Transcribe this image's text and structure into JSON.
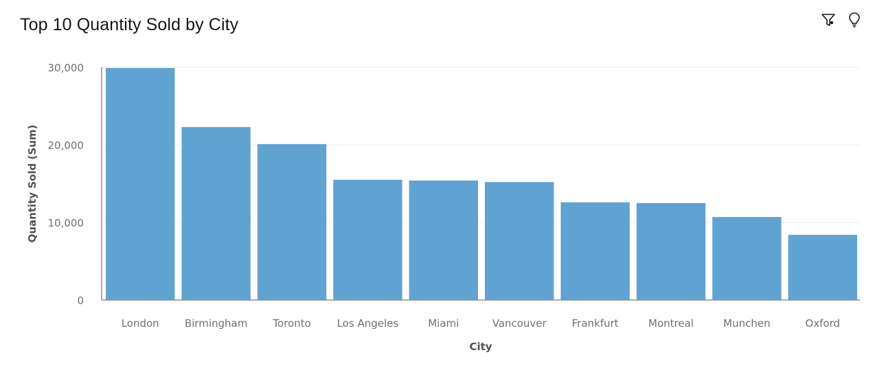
{
  "title": "Top 10 Quantity Sold by City",
  "toolbar": {
    "filter_icon": "filter-icon",
    "insight_icon": "lightbulb-icon"
  },
  "colors": {
    "bar": "#5fa3d3",
    "grid": "#ececec",
    "axis": "#8d8d8d"
  },
  "chart_data": {
    "type": "bar",
    "title": "Top 10 Quantity Sold by City",
    "xlabel": "City",
    "ylabel": "Quantity Sold (Sum)",
    "categories": [
      "London",
      "Birmingham",
      "Toronto",
      "Los Angeles",
      "Miami",
      "Vancouver",
      "Frankfurt",
      "Montreal",
      "Munchen",
      "Oxford"
    ],
    "values": [
      29900,
      22300,
      20100,
      15500,
      15400,
      15200,
      12600,
      12500,
      10700,
      8400
    ],
    "ylim": [
      0,
      30000
    ],
    "yticks": [
      0,
      10000,
      20000,
      30000
    ],
    "ytick_labels": [
      "0",
      "10,000",
      "20,000",
      "30,000"
    ],
    "grid": true,
    "legend": "none"
  }
}
